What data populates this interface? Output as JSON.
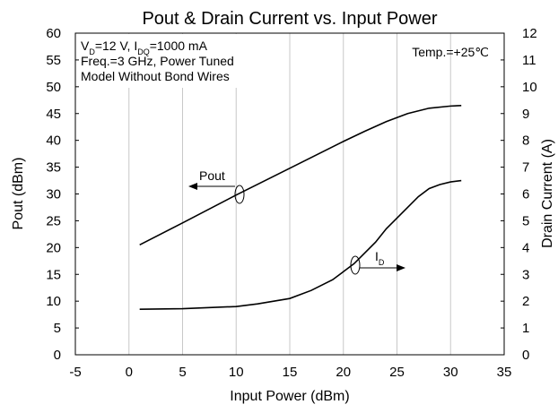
{
  "chart_data": {
    "type": "line",
    "title": "Pout & Drain Current vs. Input Power",
    "x_label": "Input Power (dBm)",
    "y_label": "Pout (dBm)",
    "y2_label": "Drain Current (A)",
    "xlim": [
      -5,
      35
    ],
    "xticks": [
      -5,
      0,
      5,
      10,
      15,
      20,
      25,
      30,
      35
    ],
    "ylim": [
      0,
      60
    ],
    "yticks": [
      0,
      5,
      10,
      15,
      20,
      25,
      30,
      35,
      40,
      45,
      50,
      55,
      60
    ],
    "y2lim": [
      0,
      12
    ],
    "y2ticks": [
      0,
      1,
      2,
      3,
      4,
      5,
      6,
      7,
      8,
      9,
      10,
      11,
      12
    ],
    "grid": "x",
    "series": [
      {
        "name": "Pout",
        "color": "#000000",
        "x": [
          1,
          5,
          10,
          15,
          20,
          22,
          24,
          26,
          28,
          30,
          31
        ],
        "values": [
          20.5,
          24.6,
          29.8,
          34.8,
          39.8,
          41.7,
          43.5,
          45,
          46,
          46.4,
          46.5
        ]
      },
      {
        "name": "ID",
        "color": "#000000",
        "axis": "y2",
        "x": [
          1,
          5,
          10,
          12,
          15,
          17,
          19,
          20,
          21,
          22,
          23,
          24,
          25,
          26,
          27,
          28,
          29,
          30,
          31
        ],
        "values": [
          1.7,
          1.72,
          1.8,
          1.9,
          2.1,
          2.4,
          2.8,
          3.1,
          3.4,
          3.8,
          4.2,
          4.7,
          5.1,
          5.5,
          5.9,
          6.2,
          6.35,
          6.45,
          6.5
        ]
      }
    ],
    "conditions": [
      [
        {
          "text": "V"
        },
        {
          "text": "D",
          "sub": true
        },
        {
          "text": "=12 V, I"
        },
        {
          "text": "DQ",
          "sub": true
        },
        {
          "text": "=1000 mA"
        }
      ],
      [
        {
          "text": "Freq.=3 GHz, Power Tuned"
        }
      ],
      [
        {
          "text": "Model Without Bond Wires"
        }
      ]
    ],
    "temperature": "Temp.=+25℃",
    "pout_label": [
      {
        "text": "Pout"
      }
    ],
    "id_label": [
      {
        "text": "I"
      },
      {
        "text": "D",
        "sub": true
      }
    ]
  }
}
